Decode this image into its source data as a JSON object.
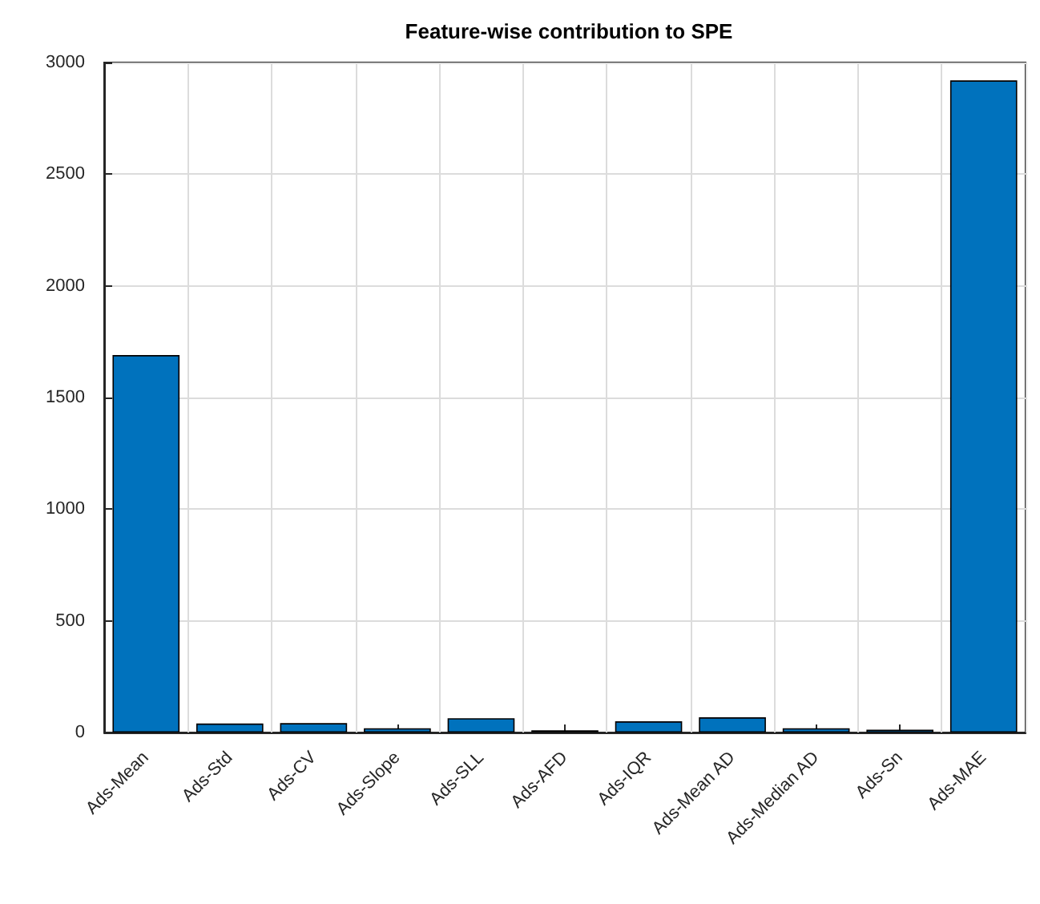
{
  "chart_data": {
    "type": "bar",
    "title": "Feature-wise contribution to SPE",
    "categories": [
      "Ads-Mean",
      "Ads-Std",
      "Ads-CV",
      "Ads-Slope",
      "Ads-SLL",
      "Ads-AFD",
      "Ads-IQR",
      "Ads-Mean AD",
      "Ads-Median AD",
      "Ads-Sn",
      "Ads-MAE"
    ],
    "values": [
      1690,
      40,
      42,
      19,
      64,
      10,
      50,
      68,
      19,
      13,
      2920
    ],
    "color": "#0072bd",
    "ylim": [
      0,
      3000
    ],
    "yticks": [
      0,
      500,
      1000,
      1500,
      2000,
      2500,
      3000
    ],
    "grid": true
  }
}
